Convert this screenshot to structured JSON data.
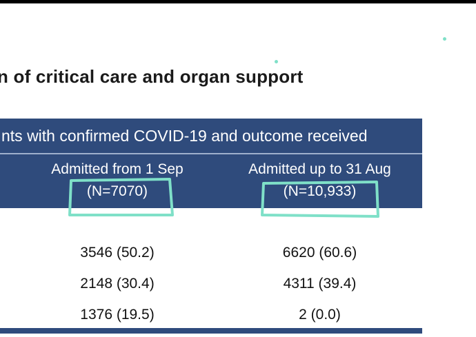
{
  "heading": "n of critical care and organ support",
  "table": {
    "header_title": "nts with confirmed COVID-19 and outcome received",
    "columns": [
      {
        "label": "Admitted from 1 Sep",
        "n": "(N=7070)"
      },
      {
        "label": "Admitted up to 31 Aug",
        "n": "(N=10,933)"
      }
    ],
    "rows": [
      [
        "3546 (50.2)",
        "6620 (60.6)"
      ],
      [
        "2148 (30.4)",
        "4311 (39.4)"
      ],
      [
        "1376 (19.5)",
        "2 (0.0)"
      ]
    ]
  },
  "colors": {
    "header_bg": "#2f4b7c",
    "highlight": "#7fe0c8"
  }
}
